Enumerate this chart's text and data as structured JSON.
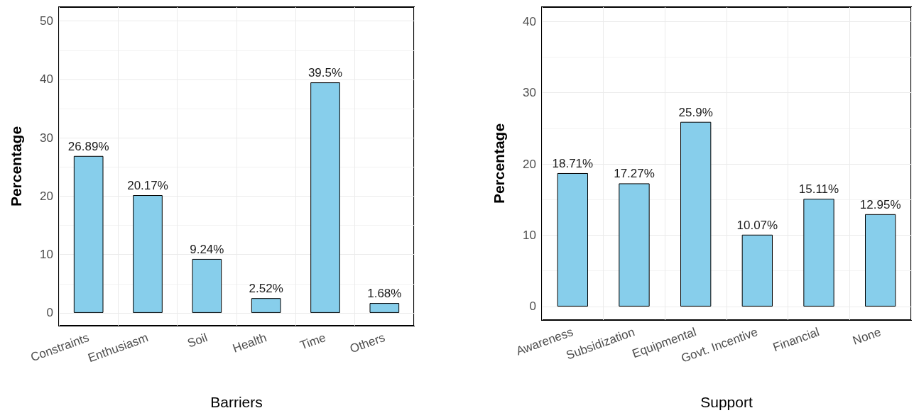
{
  "chart_data": [
    {
      "type": "bar",
      "xlabel": "Barriers",
      "ylabel": "Percentage",
      "categories": [
        "Constraints",
        "Enthusiasm",
        "Soil",
        "Health",
        "Time",
        "Others"
      ],
      "values": [
        26.89,
        20.17,
        9.24,
        2.52,
        39.5,
        1.68
      ],
      "color": "#87ceeb",
      "value_labels": [
        "26.89%",
        "20.17%",
        "9.24%",
        "2.52%",
        "39.5%",
        "1.68%"
      ],
      "ylim": [
        -2.2,
        52.4
      ],
      "yticks": [
        0,
        10,
        20,
        30,
        40,
        50
      ],
      "grid": true
    },
    {
      "type": "bar",
      "xlabel": "Support",
      "ylabel": "Percentage",
      "categories": [
        "Awareness",
        "Subsidization",
        "Equipmental",
        "Govt. Incentive",
        "Financial",
        "None"
      ],
      "values": [
        18.71,
        17.27,
        25.9,
        10.07,
        15.11,
        12.95
      ],
      "color": "#87ceeb",
      "value_labels": [
        "18.71%",
        "17.27%",
        "25.9%",
        "10.07%",
        "15.11%",
        "12.95%"
      ],
      "ylim": [
        -1.9,
        42
      ],
      "yticks": [
        0,
        10,
        20,
        30,
        40
      ],
      "grid": true
    }
  ]
}
